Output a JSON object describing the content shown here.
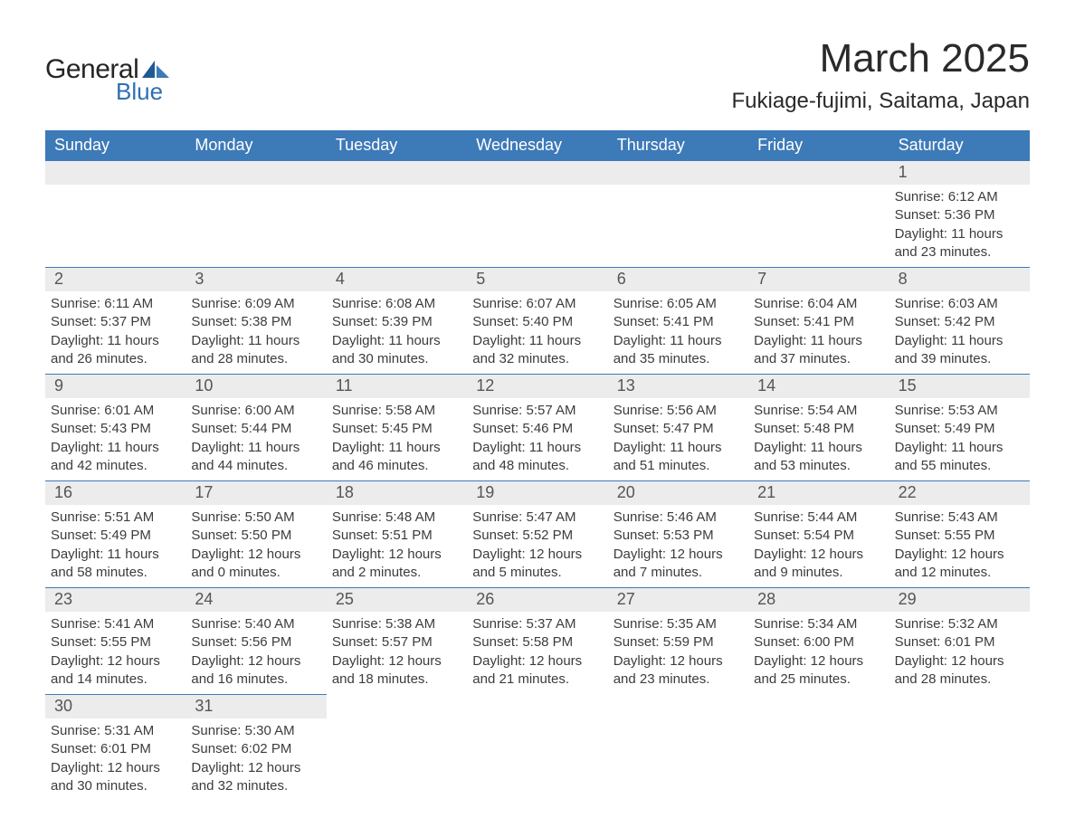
{
  "brand": {
    "word1": "General",
    "word2": "Blue",
    "text_color": "#252525",
    "accent_color": "#2f6fb3",
    "sail_dark": "#1f5a94",
    "sail_light": "#3d7ab8"
  },
  "header": {
    "month_title": "March 2025",
    "location": "Fukiage-fujimi, Saitama, Japan",
    "title_fontsize": 44,
    "location_fontsize": 24
  },
  "calendar": {
    "day_headers": [
      "Sunday",
      "Monday",
      "Tuesday",
      "Wednesday",
      "Thursday",
      "Friday",
      "Saturday"
    ],
    "header_bg": "#3d7ab8",
    "header_fg": "#ffffff",
    "daynum_bg": "#ececec",
    "daynum_fg": "#555555",
    "body_fg": "#3c3c3c",
    "row_border": "#3d7ab8",
    "leading_blanks": 6,
    "days": [
      {
        "n": "1",
        "sunrise": "Sunrise: 6:12 AM",
        "sunset": "Sunset: 5:36 PM",
        "dl1": "Daylight: 11 hours",
        "dl2": "and 23 minutes."
      },
      {
        "n": "2",
        "sunrise": "Sunrise: 6:11 AM",
        "sunset": "Sunset: 5:37 PM",
        "dl1": "Daylight: 11 hours",
        "dl2": "and 26 minutes."
      },
      {
        "n": "3",
        "sunrise": "Sunrise: 6:09 AM",
        "sunset": "Sunset: 5:38 PM",
        "dl1": "Daylight: 11 hours",
        "dl2": "and 28 minutes."
      },
      {
        "n": "4",
        "sunrise": "Sunrise: 6:08 AM",
        "sunset": "Sunset: 5:39 PM",
        "dl1": "Daylight: 11 hours",
        "dl2": "and 30 minutes."
      },
      {
        "n": "5",
        "sunrise": "Sunrise: 6:07 AM",
        "sunset": "Sunset: 5:40 PM",
        "dl1": "Daylight: 11 hours",
        "dl2": "and 32 minutes."
      },
      {
        "n": "6",
        "sunrise": "Sunrise: 6:05 AM",
        "sunset": "Sunset: 5:41 PM",
        "dl1": "Daylight: 11 hours",
        "dl2": "and 35 minutes."
      },
      {
        "n": "7",
        "sunrise": "Sunrise: 6:04 AM",
        "sunset": "Sunset: 5:41 PM",
        "dl1": "Daylight: 11 hours",
        "dl2": "and 37 minutes."
      },
      {
        "n": "8",
        "sunrise": "Sunrise: 6:03 AM",
        "sunset": "Sunset: 5:42 PM",
        "dl1": "Daylight: 11 hours",
        "dl2": "and 39 minutes."
      },
      {
        "n": "9",
        "sunrise": "Sunrise: 6:01 AM",
        "sunset": "Sunset: 5:43 PM",
        "dl1": "Daylight: 11 hours",
        "dl2": "and 42 minutes."
      },
      {
        "n": "10",
        "sunrise": "Sunrise: 6:00 AM",
        "sunset": "Sunset: 5:44 PM",
        "dl1": "Daylight: 11 hours",
        "dl2": "and 44 minutes."
      },
      {
        "n": "11",
        "sunrise": "Sunrise: 5:58 AM",
        "sunset": "Sunset: 5:45 PM",
        "dl1": "Daylight: 11 hours",
        "dl2": "and 46 minutes."
      },
      {
        "n": "12",
        "sunrise": "Sunrise: 5:57 AM",
        "sunset": "Sunset: 5:46 PM",
        "dl1": "Daylight: 11 hours",
        "dl2": "and 48 minutes."
      },
      {
        "n": "13",
        "sunrise": "Sunrise: 5:56 AM",
        "sunset": "Sunset: 5:47 PM",
        "dl1": "Daylight: 11 hours",
        "dl2": "and 51 minutes."
      },
      {
        "n": "14",
        "sunrise": "Sunrise: 5:54 AM",
        "sunset": "Sunset: 5:48 PM",
        "dl1": "Daylight: 11 hours",
        "dl2": "and 53 minutes."
      },
      {
        "n": "15",
        "sunrise": "Sunrise: 5:53 AM",
        "sunset": "Sunset: 5:49 PM",
        "dl1": "Daylight: 11 hours",
        "dl2": "and 55 minutes."
      },
      {
        "n": "16",
        "sunrise": "Sunrise: 5:51 AM",
        "sunset": "Sunset: 5:49 PM",
        "dl1": "Daylight: 11 hours",
        "dl2": "and 58 minutes."
      },
      {
        "n": "17",
        "sunrise": "Sunrise: 5:50 AM",
        "sunset": "Sunset: 5:50 PM",
        "dl1": "Daylight: 12 hours",
        "dl2": "and 0 minutes."
      },
      {
        "n": "18",
        "sunrise": "Sunrise: 5:48 AM",
        "sunset": "Sunset: 5:51 PM",
        "dl1": "Daylight: 12 hours",
        "dl2": "and 2 minutes."
      },
      {
        "n": "19",
        "sunrise": "Sunrise: 5:47 AM",
        "sunset": "Sunset: 5:52 PM",
        "dl1": "Daylight: 12 hours",
        "dl2": "and 5 minutes."
      },
      {
        "n": "20",
        "sunrise": "Sunrise: 5:46 AM",
        "sunset": "Sunset: 5:53 PM",
        "dl1": "Daylight: 12 hours",
        "dl2": "and 7 minutes."
      },
      {
        "n": "21",
        "sunrise": "Sunrise: 5:44 AM",
        "sunset": "Sunset: 5:54 PM",
        "dl1": "Daylight: 12 hours",
        "dl2": "and 9 minutes."
      },
      {
        "n": "22",
        "sunrise": "Sunrise: 5:43 AM",
        "sunset": "Sunset: 5:55 PM",
        "dl1": "Daylight: 12 hours",
        "dl2": "and 12 minutes."
      },
      {
        "n": "23",
        "sunrise": "Sunrise: 5:41 AM",
        "sunset": "Sunset: 5:55 PM",
        "dl1": "Daylight: 12 hours",
        "dl2": "and 14 minutes."
      },
      {
        "n": "24",
        "sunrise": "Sunrise: 5:40 AM",
        "sunset": "Sunset: 5:56 PM",
        "dl1": "Daylight: 12 hours",
        "dl2": "and 16 minutes."
      },
      {
        "n": "25",
        "sunrise": "Sunrise: 5:38 AM",
        "sunset": "Sunset: 5:57 PM",
        "dl1": "Daylight: 12 hours",
        "dl2": "and 18 minutes."
      },
      {
        "n": "26",
        "sunrise": "Sunrise: 5:37 AM",
        "sunset": "Sunset: 5:58 PM",
        "dl1": "Daylight: 12 hours",
        "dl2": "and 21 minutes."
      },
      {
        "n": "27",
        "sunrise": "Sunrise: 5:35 AM",
        "sunset": "Sunset: 5:59 PM",
        "dl1": "Daylight: 12 hours",
        "dl2": "and 23 minutes."
      },
      {
        "n": "28",
        "sunrise": "Sunrise: 5:34 AM",
        "sunset": "Sunset: 6:00 PM",
        "dl1": "Daylight: 12 hours",
        "dl2": "and 25 minutes."
      },
      {
        "n": "29",
        "sunrise": "Sunrise: 5:32 AM",
        "sunset": "Sunset: 6:01 PM",
        "dl1": "Daylight: 12 hours",
        "dl2": "and 28 minutes."
      },
      {
        "n": "30",
        "sunrise": "Sunrise: 5:31 AM",
        "sunset": "Sunset: 6:01 PM",
        "dl1": "Daylight: 12 hours",
        "dl2": "and 30 minutes."
      },
      {
        "n": "31",
        "sunrise": "Sunrise: 5:30 AM",
        "sunset": "Sunset: 6:02 PM",
        "dl1": "Daylight: 12 hours",
        "dl2": "and 32 minutes."
      }
    ]
  }
}
